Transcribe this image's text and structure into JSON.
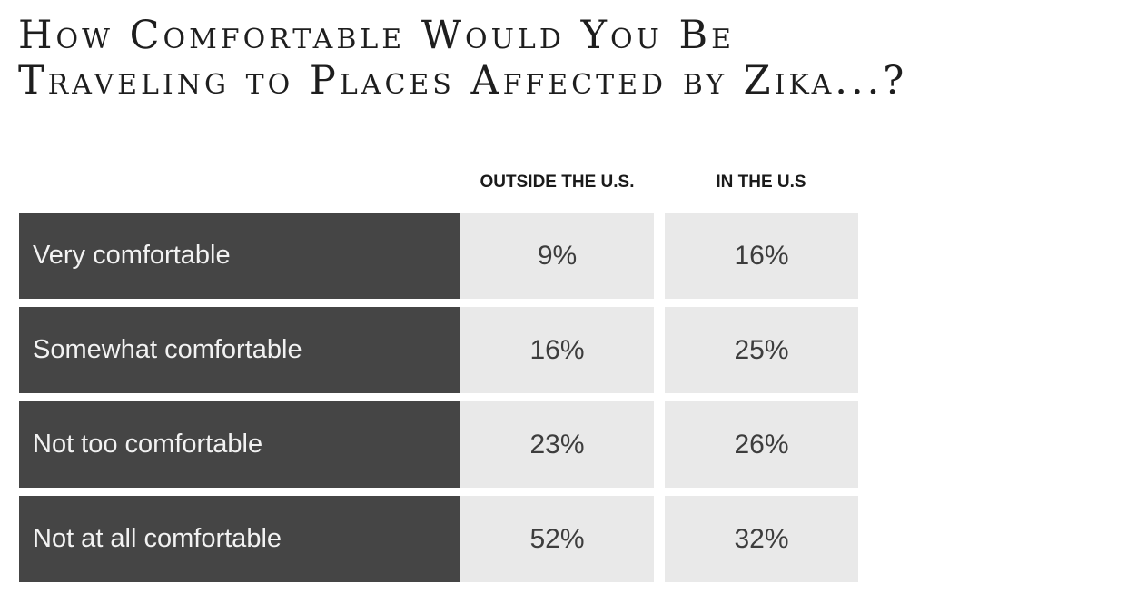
{
  "chart_data": {
    "type": "table",
    "title_lines": [
      "How Comfortable Would You Be",
      "Traveling to Places Affected by Zika...?"
    ],
    "columns": [
      "OUTSIDE THE U.S.",
      "IN THE U.S"
    ],
    "rows": [
      {
        "label": "Very comfortable",
        "values": [
          "9%",
          "16%"
        ]
      },
      {
        "label": "Somewhat comfortable",
        "values": [
          "16%",
          "25%"
        ]
      },
      {
        "label": "Not too comfortable",
        "values": [
          "23%",
          "26%"
        ]
      },
      {
        "label": "Not at all comfortable",
        "values": [
          "52%",
          "32%"
        ]
      }
    ],
    "numeric": {
      "outside_us": [
        9,
        16,
        23,
        52
      ],
      "in_us": [
        16,
        25,
        26,
        32
      ]
    },
    "colors": {
      "label_background": "#454545",
      "label_text": "#f2f2f2",
      "cell_background": "#e9e9e9",
      "cell_text": "#3d3d3d"
    }
  }
}
